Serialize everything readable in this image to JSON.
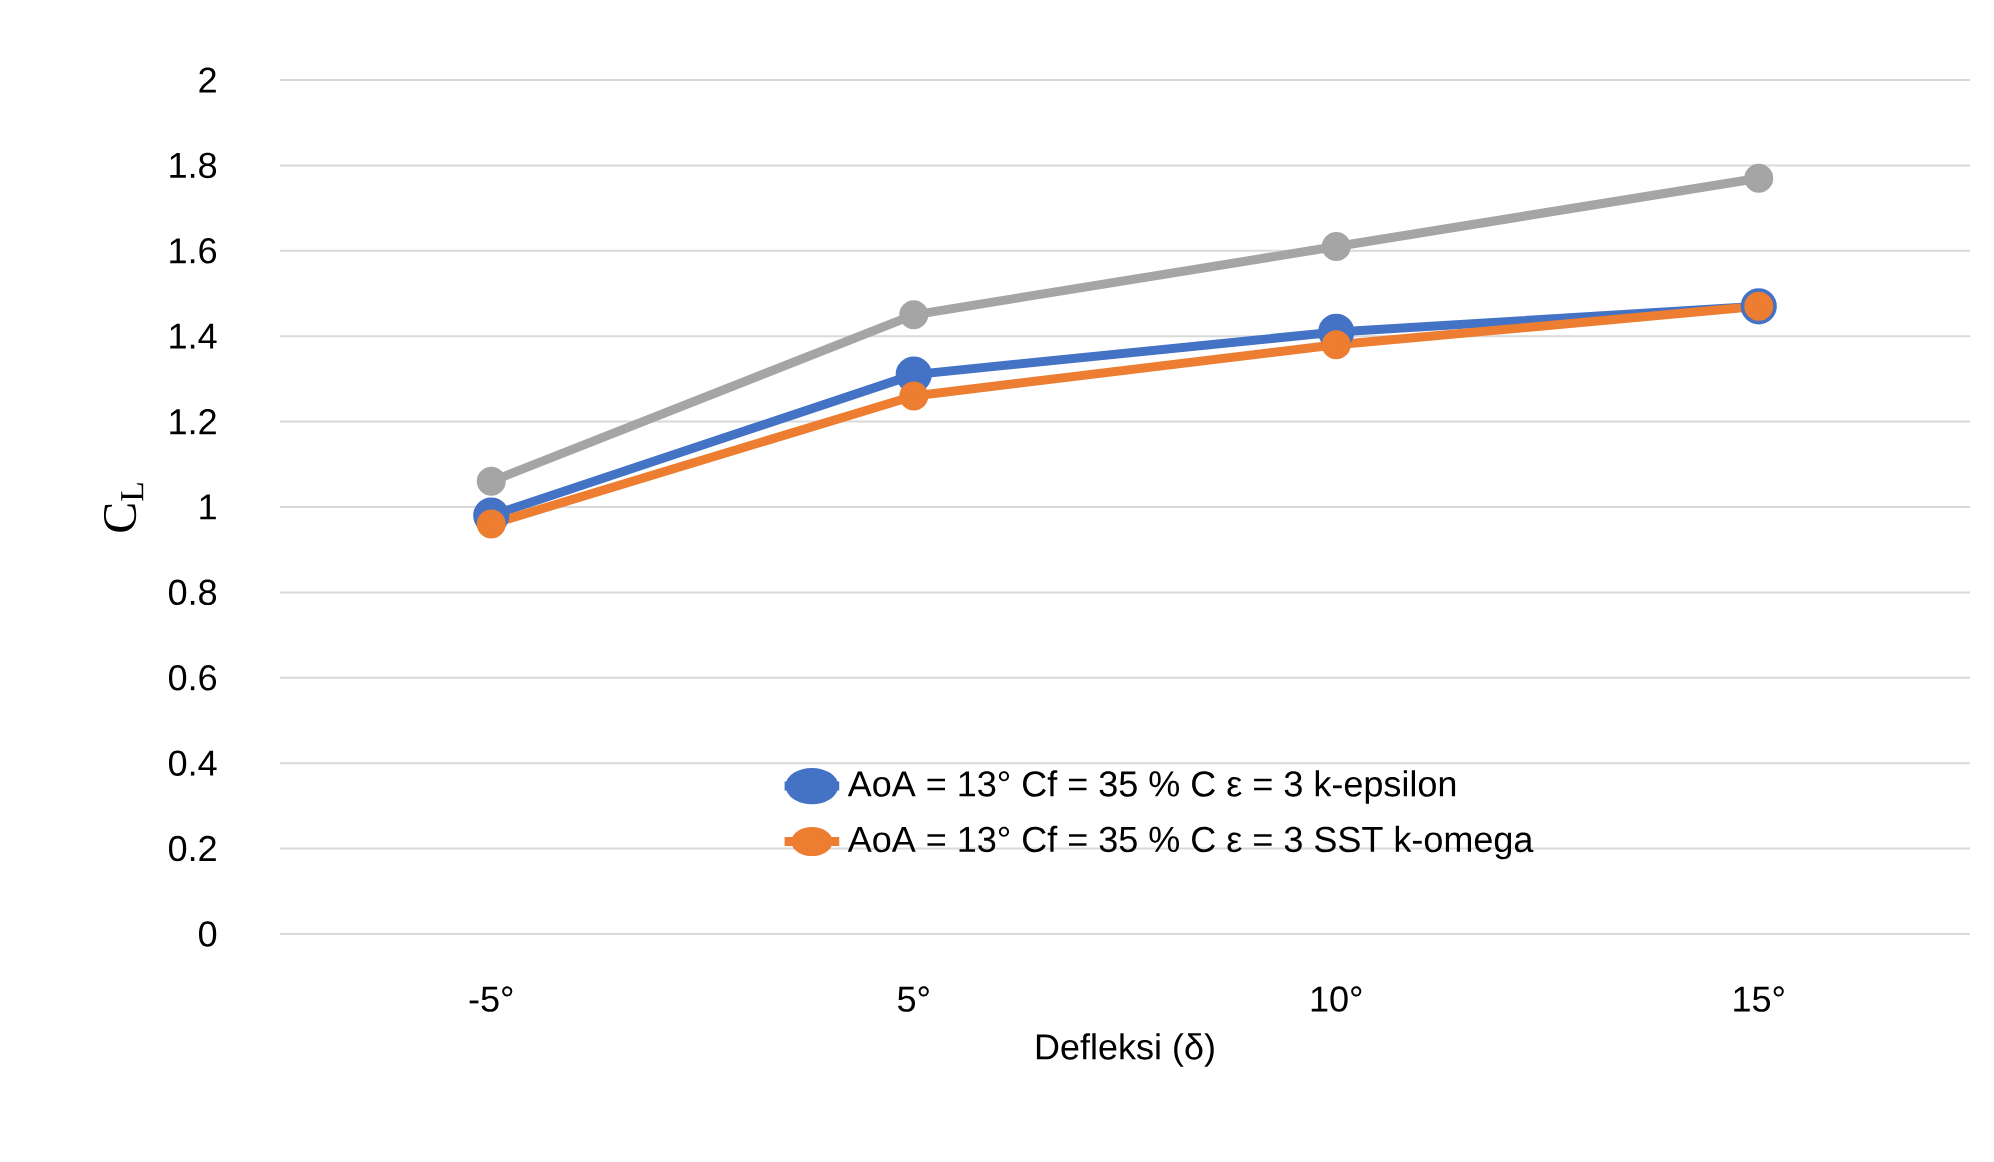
{
  "chart_data": {
    "type": "line",
    "xlabel": "Defleksi (δ)",
    "ylabel": "C$_{L}$",
    "categories": [
      "-5°",
      "5°",
      "10°",
      "15°"
    ],
    "series": [
      {
        "name": "AoA = 13° Cf = 35 % C ε = 3 k-epsilon",
        "color": "#4472c4",
        "values": [
          0.98,
          1.31,
          1.41,
          1.47
        ]
      },
      {
        "name": "AoA = 13° Cf = 35 % C ε = 3 SST k-omega",
        "color": "#ed7d31",
        "values": [
          0.96,
          1.26,
          1.38,
          1.47
        ]
      },
      {
        "color": "#a5a5a5",
        "values": [
          1.06,
          1.45,
          1.61,
          1.77
        ]
      }
    ],
    "ylim": [
      0,
      2
    ],
    "yticks": [
      0,
      0.2,
      0.4,
      0.6,
      0.8,
      1,
      1.2,
      1.4,
      1.6,
      1.8,
      2
    ],
    "grid": "y",
    "legend": "bottom",
    "marker": "circle",
    "line_style": "solid"
  }
}
